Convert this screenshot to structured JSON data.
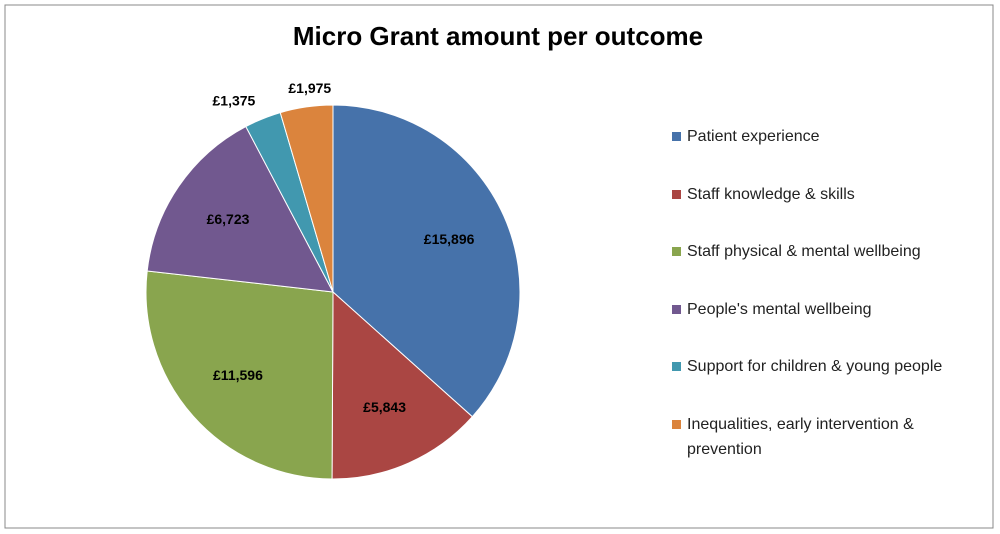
{
  "chart_data": {
    "type": "pie",
    "title": "Micro Grant amount per outcome",
    "categories": [
      "Patient experience",
      "Staff knowledge & skills",
      "Staff physical & mental wellbeing",
      "People's mental wellbeing",
      "Support for children & young people",
      "Inequalities, early intervention & prevention"
    ],
    "values": [
      15896,
      5843,
      11596,
      6723,
      1375,
      1975
    ],
    "value_labels": [
      "£15,896",
      "£5,843",
      "£11,596",
      "£6,723",
      "£1,375",
      "£1,975"
    ],
    "colors": [
      "#4672aa",
      "#aa4643",
      "#89a54e",
      "#71588f",
      "#4198af",
      "#db843d"
    ],
    "legend": "right"
  }
}
